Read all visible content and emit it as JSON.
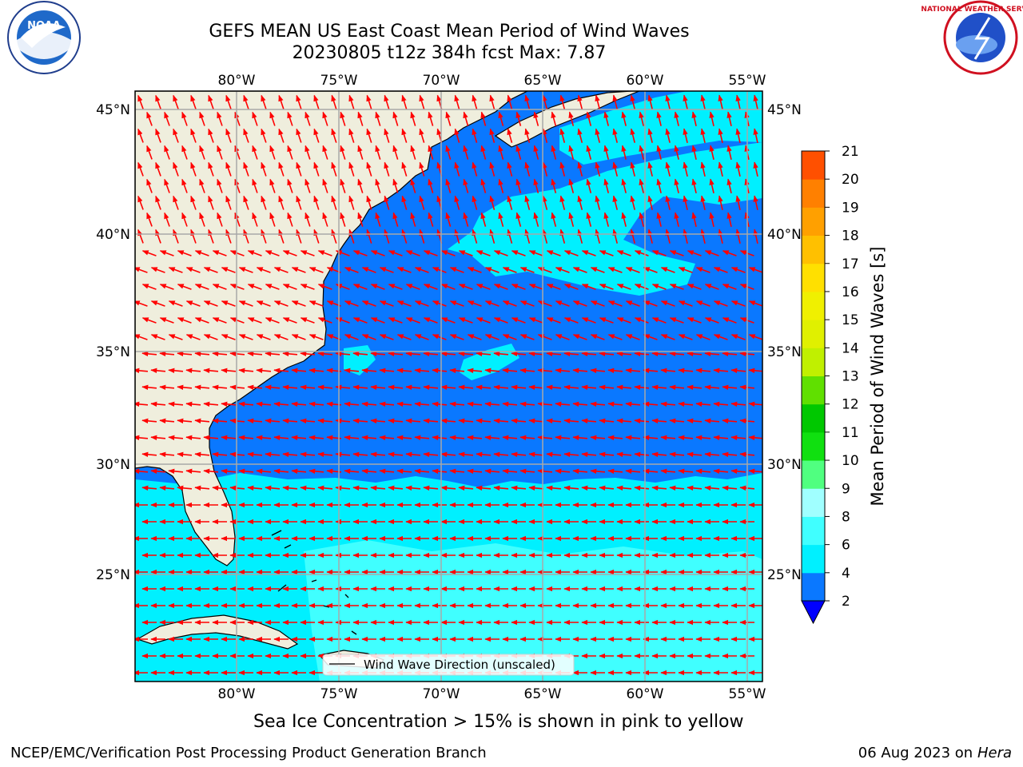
{
  "title": {
    "line1": "GEFS MEAN US East Coast Mean Period of Wind Waves",
    "line2": "20230805 t12z 384h fcst   Max: 7.87"
  },
  "logos": {
    "left": "NOAA",
    "right": "NATIONAL WEATHER SERVICE"
  },
  "map": {
    "lon_labels": [
      "80°W",
      "75°W",
      "70°W",
      "65°W",
      "60°W",
      "55°W"
    ],
    "lat_labels": [
      "45°N",
      "40°N",
      "35°N",
      "30°N",
      "25°N"
    ],
    "legend_label": "Wind Wave Direction (unscaled)",
    "land_color": "#efeedd",
    "arrow_color": "#ff0000"
  },
  "colorbar": {
    "label": "Mean Period of Wind Waves [s]",
    "ticks": [
      "2",
      "4",
      "6",
      "8",
      "9",
      "10",
      "11",
      "12",
      "13",
      "14",
      "15",
      "16",
      "17",
      "18",
      "19",
      "20",
      "21"
    ],
    "colors": [
      "#0a78ff",
      "#00f0ff",
      "#40ffff",
      "#a0ffff",
      "#50ff80",
      "#10e010",
      "#00c800",
      "#60e000",
      "#c0f000",
      "#e0f000",
      "#f0f000",
      "#ffe000",
      "#ffc000",
      "#ffa000",
      "#ff8000",
      "#ff5000",
      "#ff2000",
      "#ff0000"
    ],
    "underflow_color": "#0000ff"
  },
  "note": "Sea Ice Concentration > 15% is shown in pink to yellow",
  "footer": {
    "left": "NCEP/EMC/Verification Post Processing Product Generation Branch",
    "date": "06 Aug 2023 on",
    "host": "Hera"
  }
}
